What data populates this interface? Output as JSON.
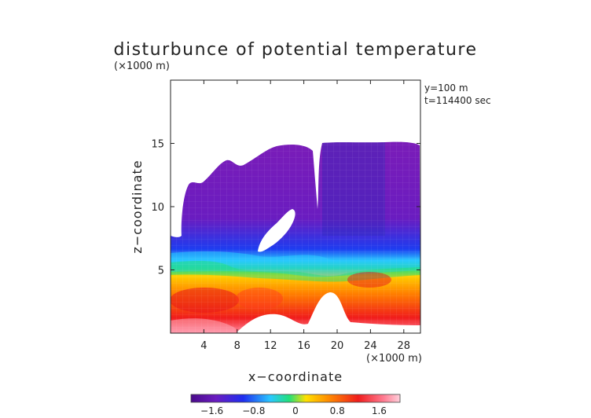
{
  "chart_data": {
    "type": "heatmap",
    "title": "disturbunce of potential temperature",
    "y_unit_label": "(×1000 m)",
    "x_unit_label": "(×1000 m)",
    "xlabel": "x−coordinate",
    "ylabel": "z−coordinate",
    "annotations": [
      "y=100 m",
      "t=114400 sec"
    ],
    "xlim": [
      0,
      30
    ],
    "ylim": [
      0,
      20
    ],
    "x_ticks": [
      4,
      8,
      12,
      16,
      20,
      24,
      28
    ],
    "y_ticks": [
      5,
      10,
      15
    ],
    "grid": true,
    "colorbar": {
      "ticks": [
        "−1.6",
        "−0.8",
        "0",
        "0.8",
        "1.6"
      ],
      "range": [
        -2.0,
        2.0
      ]
    },
    "field_description": {
      "cold_layer_value": -1.6,
      "warm_layer_value": 1.6
    }
  },
  "colors": {
    "deep_purple": "#7a19b8",
    "blue": "#2b2ef0",
    "cyan": "#27c6ff",
    "green": "#20e070",
    "yellow": "#ffd300",
    "orange": "#ff8a00",
    "red": "#f01a1a",
    "pink": "#ff9aa8"
  }
}
